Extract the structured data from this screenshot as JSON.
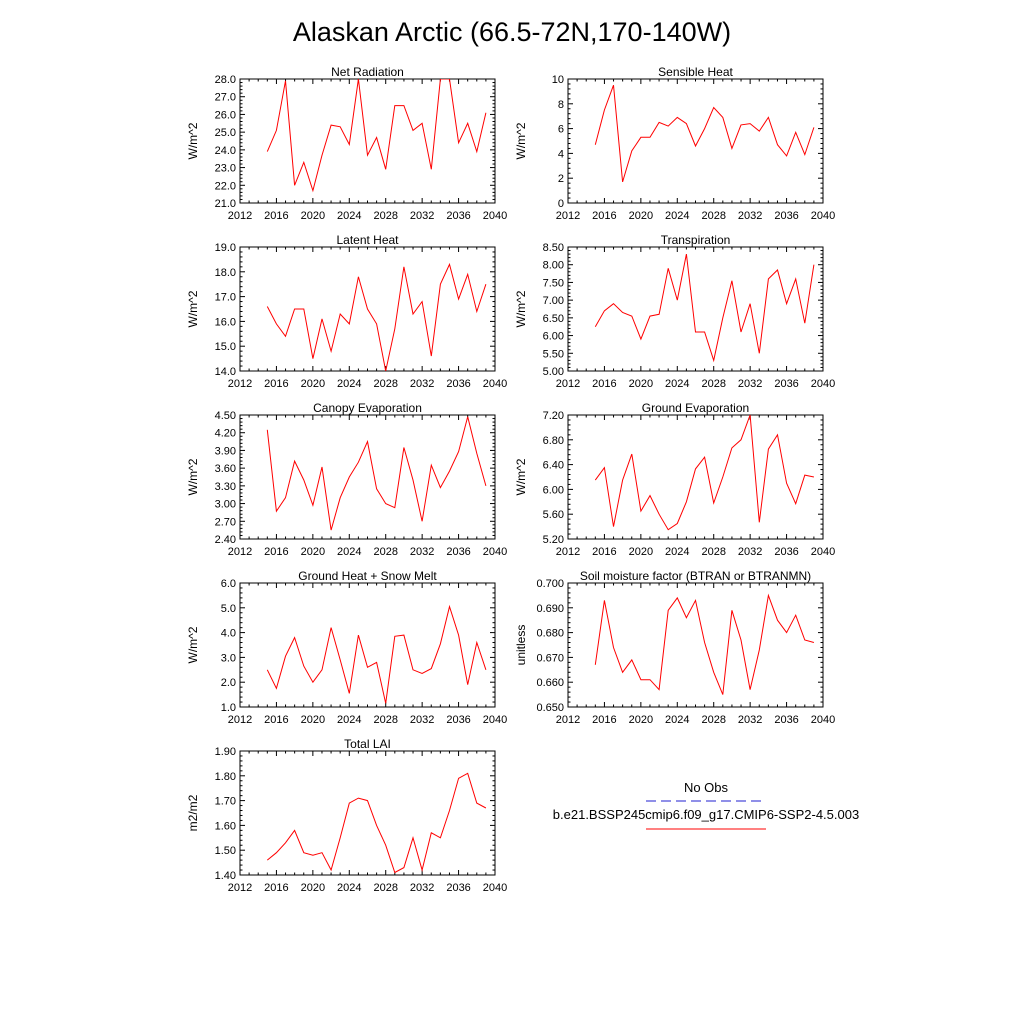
{
  "title": "Alaskan Arctic (66.5-72N,170-140W)",
  "colors": {
    "model_line": "#ff0000",
    "obs_line": "#1f1fd0",
    "axis": "#000000"
  },
  "legend": {
    "obs_label": "No Obs",
    "model_label": "b.e21.BSSP245cmip6.f09_g17.CMIP6-SSP2-4.5.003"
  },
  "chart_data": [
    {
      "type": "line",
      "title": "Net Radiation",
      "ylabel": "W/m^2",
      "xlim": [
        2012,
        2040
      ],
      "ylim": [
        21.0,
        28.0
      ],
      "xticks": [
        "2012",
        "2016",
        "2020",
        "2024",
        "2028",
        "2032",
        "2036",
        "2040"
      ],
      "yticks": [
        "21.0",
        "22.0",
        "23.0",
        "24.0",
        "25.0",
        "26.0",
        "27.0",
        "28.0"
      ],
      "x": [
        2015,
        2016,
        2017,
        2018,
        2019,
        2020,
        2021,
        2022,
        2023,
        2024,
        2025,
        2026,
        2027,
        2028,
        2029,
        2030,
        2031,
        2032,
        2033,
        2034,
        2035,
        2036,
        2037,
        2038,
        2039
      ],
      "series": [
        {
          "values": [
            23.9,
            25.1,
            27.9,
            22.0,
            23.3,
            21.7,
            23.7,
            25.4,
            25.3,
            24.3,
            28.0,
            23.7,
            24.7,
            22.9,
            26.5,
            26.5,
            25.1,
            25.5,
            22.9,
            28.0,
            28.0,
            24.4,
            25.5,
            23.9,
            26.1
          ]
        }
      ]
    },
    {
      "type": "line",
      "title": "Sensible Heat",
      "ylabel": "W/m^2",
      "xlim": [
        2012,
        2040
      ],
      "ylim": [
        0,
        10
      ],
      "xticks": [
        "2012",
        "2016",
        "2020",
        "2024",
        "2028",
        "2032",
        "2036",
        "2040"
      ],
      "yticks": [
        "0",
        "2",
        "4",
        "6",
        "8",
        "10"
      ],
      "x": [
        2015,
        2016,
        2017,
        2018,
        2019,
        2020,
        2021,
        2022,
        2023,
        2024,
        2025,
        2026,
        2027,
        2028,
        2029,
        2030,
        2031,
        2032,
        2033,
        2034,
        2035,
        2036,
        2037,
        2038,
        2039
      ],
      "series": [
        {
          "values": [
            4.7,
            7.5,
            9.5,
            1.7,
            4.2,
            5.3,
            5.3,
            6.5,
            6.2,
            6.9,
            6.4,
            4.6,
            6.0,
            7.7,
            6.9,
            4.4,
            6.3,
            6.4,
            5.8,
            6.9,
            4.7,
            3.8,
            5.7,
            3.9,
            6.1
          ]
        }
      ]
    },
    {
      "type": "line",
      "title": "Latent Heat",
      "ylabel": "W/m^2",
      "xlim": [
        2012,
        2040
      ],
      "ylim": [
        14.0,
        19.0
      ],
      "xticks": [
        "2012",
        "2016",
        "2020",
        "2024",
        "2028",
        "2032",
        "2036",
        "2040"
      ],
      "yticks": [
        "14.0",
        "15.0",
        "16.0",
        "17.0",
        "18.0",
        "19.0"
      ],
      "x": [
        2015,
        2016,
        2017,
        2018,
        2019,
        2020,
        2021,
        2022,
        2023,
        2024,
        2025,
        2026,
        2027,
        2028,
        2029,
        2030,
        2031,
        2032,
        2033,
        2034,
        2035,
        2036,
        2037,
        2038,
        2039
      ],
      "series": [
        {
          "values": [
            16.6,
            15.9,
            15.4,
            16.5,
            16.5,
            14.5,
            16.1,
            14.8,
            16.3,
            15.9,
            17.8,
            16.5,
            15.9,
            14.0,
            15.7,
            18.2,
            16.3,
            16.8,
            14.6,
            17.5,
            18.3,
            16.9,
            17.9,
            16.4,
            17.5
          ]
        }
      ]
    },
    {
      "type": "line",
      "title": "Transpiration",
      "ylabel": "W/m^2",
      "xlim": [
        2012,
        2040
      ],
      "ylim": [
        5.0,
        8.5
      ],
      "xticks": [
        "2012",
        "2016",
        "2020",
        "2024",
        "2028",
        "2032",
        "2036",
        "2040"
      ],
      "yticks": [
        "5.00",
        "5.50",
        "6.00",
        "6.50",
        "7.00",
        "7.50",
        "8.00",
        "8.50"
      ],
      "x": [
        2015,
        2016,
        2017,
        2018,
        2019,
        2020,
        2021,
        2022,
        2023,
        2024,
        2025,
        2026,
        2027,
        2028,
        2029,
        2030,
        2031,
        2032,
        2033,
        2034,
        2035,
        2036,
        2037,
        2038,
        2039
      ],
      "series": [
        {
          "values": [
            6.25,
            6.7,
            6.9,
            6.65,
            6.55,
            5.9,
            6.55,
            6.6,
            7.9,
            7.0,
            8.3,
            6.1,
            6.1,
            5.3,
            6.5,
            7.55,
            6.1,
            6.9,
            5.5,
            7.6,
            7.85,
            6.9,
            7.6,
            6.35,
            8.0
          ]
        }
      ]
    },
    {
      "type": "line",
      "title": "Canopy Evaporation",
      "ylabel": "W/m^2",
      "xlim": [
        2012,
        2040
      ],
      "ylim": [
        2.4,
        4.5
      ],
      "xticks": [
        "2012",
        "2016",
        "2020",
        "2024",
        "2028",
        "2032",
        "2036",
        "2040"
      ],
      "yticks": [
        "2.40",
        "2.70",
        "3.00",
        "3.30",
        "3.60",
        "3.90",
        "4.20",
        "4.50"
      ],
      "x": [
        2015,
        2016,
        2017,
        2018,
        2019,
        2020,
        2021,
        2022,
        2023,
        2024,
        2025,
        2026,
        2027,
        2028,
        2029,
        2030,
        2031,
        2032,
        2033,
        2034,
        2035,
        2036,
        2037,
        2038,
        2039
      ],
      "series": [
        {
          "values": [
            4.25,
            2.87,
            3.1,
            3.72,
            3.4,
            2.97,
            3.62,
            2.55,
            3.1,
            3.45,
            3.7,
            4.05,
            3.25,
            3.0,
            2.93,
            3.95,
            3.4,
            2.7,
            3.65,
            3.27,
            3.55,
            3.88,
            4.47,
            3.85,
            3.3
          ]
        }
      ]
    },
    {
      "type": "line",
      "title": "Ground Evaporation",
      "ylabel": "W/m^2",
      "xlim": [
        2012,
        2040
      ],
      "ylim": [
        5.2,
        7.2
      ],
      "xticks": [
        "2012",
        "2016",
        "2020",
        "2024",
        "2028",
        "2032",
        "2036",
        "2040"
      ],
      "yticks": [
        "5.20",
        "5.60",
        "6.00",
        "6.40",
        "6.80",
        "7.20"
      ],
      "x": [
        2015,
        2016,
        2017,
        2018,
        2019,
        2020,
        2021,
        2022,
        2023,
        2024,
        2025,
        2026,
        2027,
        2028,
        2029,
        2030,
        2031,
        2032,
        2033,
        2034,
        2035,
        2036,
        2037,
        2038,
        2039
      ],
      "series": [
        {
          "values": [
            6.15,
            6.35,
            5.4,
            6.15,
            6.57,
            5.65,
            5.9,
            5.6,
            5.35,
            5.45,
            5.8,
            6.33,
            6.52,
            5.78,
            6.2,
            6.67,
            6.8,
            7.2,
            5.47,
            6.65,
            6.88,
            6.1,
            5.77,
            6.23,
            6.2
          ]
        }
      ]
    },
    {
      "type": "line",
      "title": "Ground Heat + Snow Melt",
      "ylabel": "W/m^2",
      "xlim": [
        2012,
        2040
      ],
      "ylim": [
        1.0,
        6.0
      ],
      "xticks": [
        "2012",
        "2016",
        "2020",
        "2024",
        "2028",
        "2032",
        "2036",
        "2040"
      ],
      "yticks": [
        "1.0",
        "2.0",
        "3.0",
        "4.0",
        "5.0",
        "6.0"
      ],
      "x": [
        2015,
        2016,
        2017,
        2018,
        2019,
        2020,
        2021,
        2022,
        2023,
        2024,
        2025,
        2026,
        2027,
        2028,
        2029,
        2030,
        2031,
        2032,
        2033,
        2034,
        2035,
        2036,
        2037,
        2038,
        2039
      ],
      "series": [
        {
          "values": [
            2.5,
            1.75,
            3.05,
            3.8,
            2.65,
            2.0,
            2.5,
            4.2,
            2.9,
            1.55,
            3.9,
            2.6,
            2.8,
            1.15,
            3.85,
            3.9,
            2.5,
            2.35,
            2.55,
            3.55,
            5.05,
            3.9,
            1.9,
            3.6,
            2.5
          ]
        }
      ]
    },
    {
      "type": "line",
      "title": "Soil moisture factor (BTRAN or BTRANMN)",
      "ylabel": "unitless",
      "xlim": [
        2012,
        2040
      ],
      "ylim": [
        0.65,
        0.7
      ],
      "xticks": [
        "2012",
        "2016",
        "2020",
        "2024",
        "2028",
        "2032",
        "2036",
        "2040"
      ],
      "yticks": [
        "0.650",
        "0.660",
        "0.670",
        "0.680",
        "0.690",
        "0.700"
      ],
      "x": [
        2015,
        2016,
        2017,
        2018,
        2019,
        2020,
        2021,
        2022,
        2023,
        2024,
        2025,
        2026,
        2027,
        2028,
        2029,
        2030,
        2031,
        2032,
        2033,
        2034,
        2035,
        2036,
        2037,
        2038,
        2039
      ],
      "series": [
        {
          "values": [
            0.667,
            0.693,
            0.674,
            0.664,
            0.669,
            0.661,
            0.661,
            0.657,
            0.689,
            0.694,
            0.686,
            0.693,
            0.676,
            0.664,
            0.655,
            0.689,
            0.677,
            0.657,
            0.673,
            0.695,
            0.685,
            0.68,
            0.687,
            0.677,
            0.676
          ]
        }
      ]
    },
    {
      "type": "line",
      "title": "Total LAI",
      "ylabel": "m2/m2",
      "xlim": [
        2012,
        2040
      ],
      "ylim": [
        1.4,
        1.9
      ],
      "xticks": [
        "2012",
        "2016",
        "2020",
        "2024",
        "2028",
        "2032",
        "2036",
        "2040"
      ],
      "yticks": [
        "1.40",
        "1.50",
        "1.60",
        "1.70",
        "1.80",
        "1.90"
      ],
      "x": [
        2015,
        2016,
        2017,
        2018,
        2019,
        2020,
        2021,
        2022,
        2023,
        2024,
        2025,
        2026,
        2027,
        2028,
        2029,
        2030,
        2031,
        2032,
        2033,
        2034,
        2035,
        2036,
        2037,
        2038,
        2039
      ],
      "series": [
        {
          "values": [
            1.46,
            1.49,
            1.53,
            1.58,
            1.49,
            1.48,
            1.49,
            1.42,
            1.55,
            1.69,
            1.71,
            1.7,
            1.6,
            1.52,
            1.41,
            1.43,
            1.55,
            1.42,
            1.57,
            1.55,
            1.66,
            1.79,
            1.81,
            1.69,
            1.67
          ]
        }
      ]
    }
  ]
}
